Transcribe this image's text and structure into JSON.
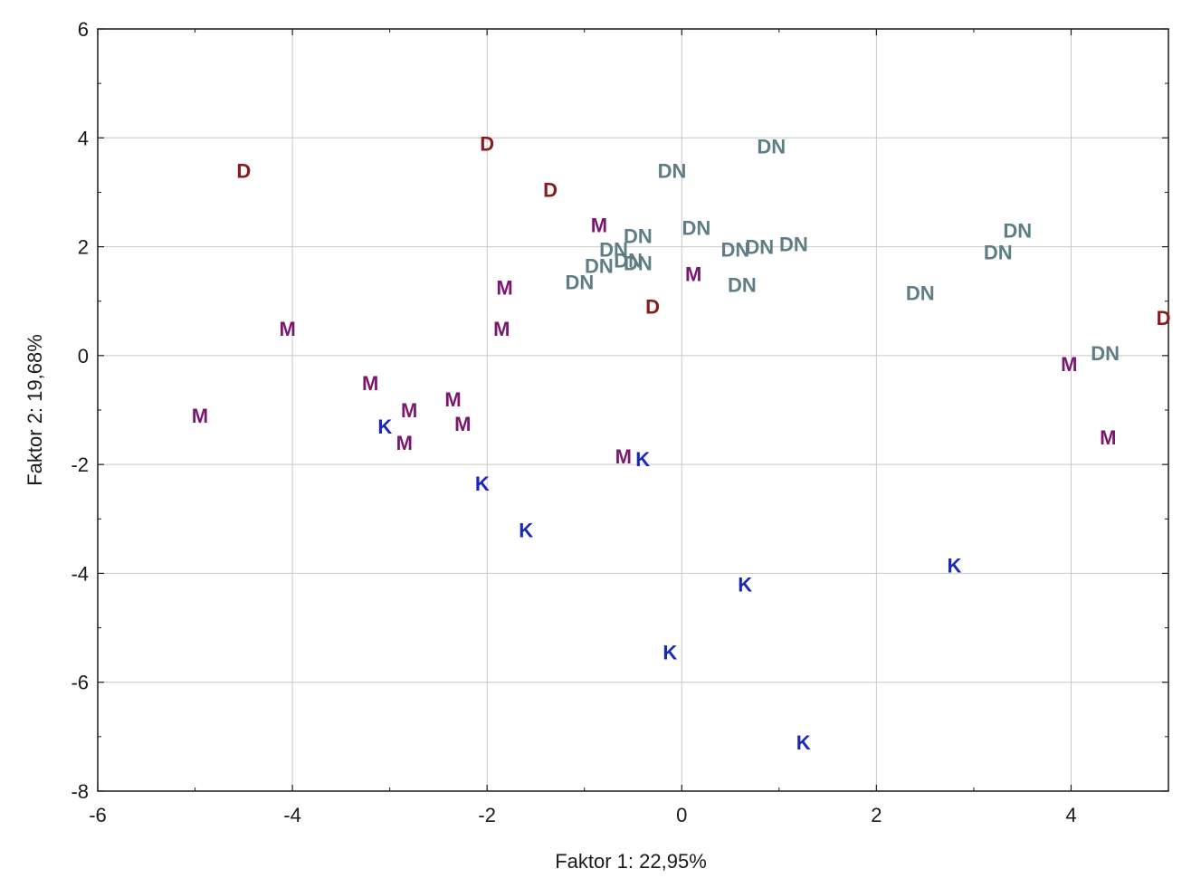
{
  "chart_data": {
    "type": "scatter",
    "xlabel": "Faktor 1: 22,95%",
    "ylabel": "Faktor 2: 19,68%",
    "xlim": [
      -6,
      5
    ],
    "ylim": [
      -8,
      6
    ],
    "xticks": [
      "-6",
      "-4",
      "-2",
      "0",
      "2",
      "4"
    ],
    "yticks": [
      "6",
      "4",
      "2",
      "0",
      "-2",
      "-4",
      "-6",
      "-8"
    ],
    "grid": true,
    "legend": "none",
    "colors": {
      "D": "#8b1a1a",
      "M": "#7a1670",
      "K": "#1a28b8",
      "DN": "#5f7d85"
    },
    "series": [
      {
        "label": "D",
        "points": [
          [
            -4.5,
            3.4
          ],
          [
            -2.0,
            3.9
          ],
          [
            -1.35,
            3.05
          ],
          [
            -0.3,
            0.9
          ],
          [
            4.95,
            0.7
          ]
        ]
      },
      {
        "label": "M",
        "points": [
          [
            -4.95,
            -1.1
          ],
          [
            -4.05,
            0.5
          ],
          [
            -3.2,
            -0.5
          ],
          [
            -2.8,
            -1.0
          ],
          [
            -2.85,
            -1.6
          ],
          [
            -2.35,
            -0.8
          ],
          [
            -2.25,
            -1.25
          ],
          [
            -1.82,
            1.25
          ],
          [
            -1.85,
            0.5
          ],
          [
            -0.85,
            2.4
          ],
          [
            -0.6,
            -1.85
          ],
          [
            0.12,
            1.5
          ],
          [
            3.98,
            -0.15
          ],
          [
            4.38,
            -1.5
          ]
        ]
      },
      {
        "label": "K",
        "points": [
          [
            -3.05,
            -1.3
          ],
          [
            -2.05,
            -2.35
          ],
          [
            -1.6,
            -3.2
          ],
          [
            -0.4,
            -1.9
          ],
          [
            -0.12,
            -5.45
          ],
          [
            0.65,
            -4.2
          ],
          [
            1.25,
            -7.1
          ],
          [
            2.8,
            -3.85
          ]
        ]
      },
      {
        "label": "DN",
        "points": [
          [
            0.92,
            3.85
          ],
          [
            -0.1,
            3.4
          ],
          [
            0.15,
            2.35
          ],
          [
            -0.45,
            2.2
          ],
          [
            -0.7,
            1.95
          ],
          [
            -0.55,
            1.75
          ],
          [
            -0.45,
            1.7
          ],
          [
            -0.85,
            1.65
          ],
          [
            -1.05,
            1.35
          ],
          [
            0.55,
            1.95
          ],
          [
            0.8,
            2.0
          ],
          [
            1.15,
            2.05
          ],
          [
            0.62,
            1.3
          ],
          [
            2.45,
            1.15
          ],
          [
            3.45,
            2.3
          ],
          [
            3.25,
            1.9
          ],
          [
            4.35,
            0.05
          ]
        ]
      }
    ]
  }
}
